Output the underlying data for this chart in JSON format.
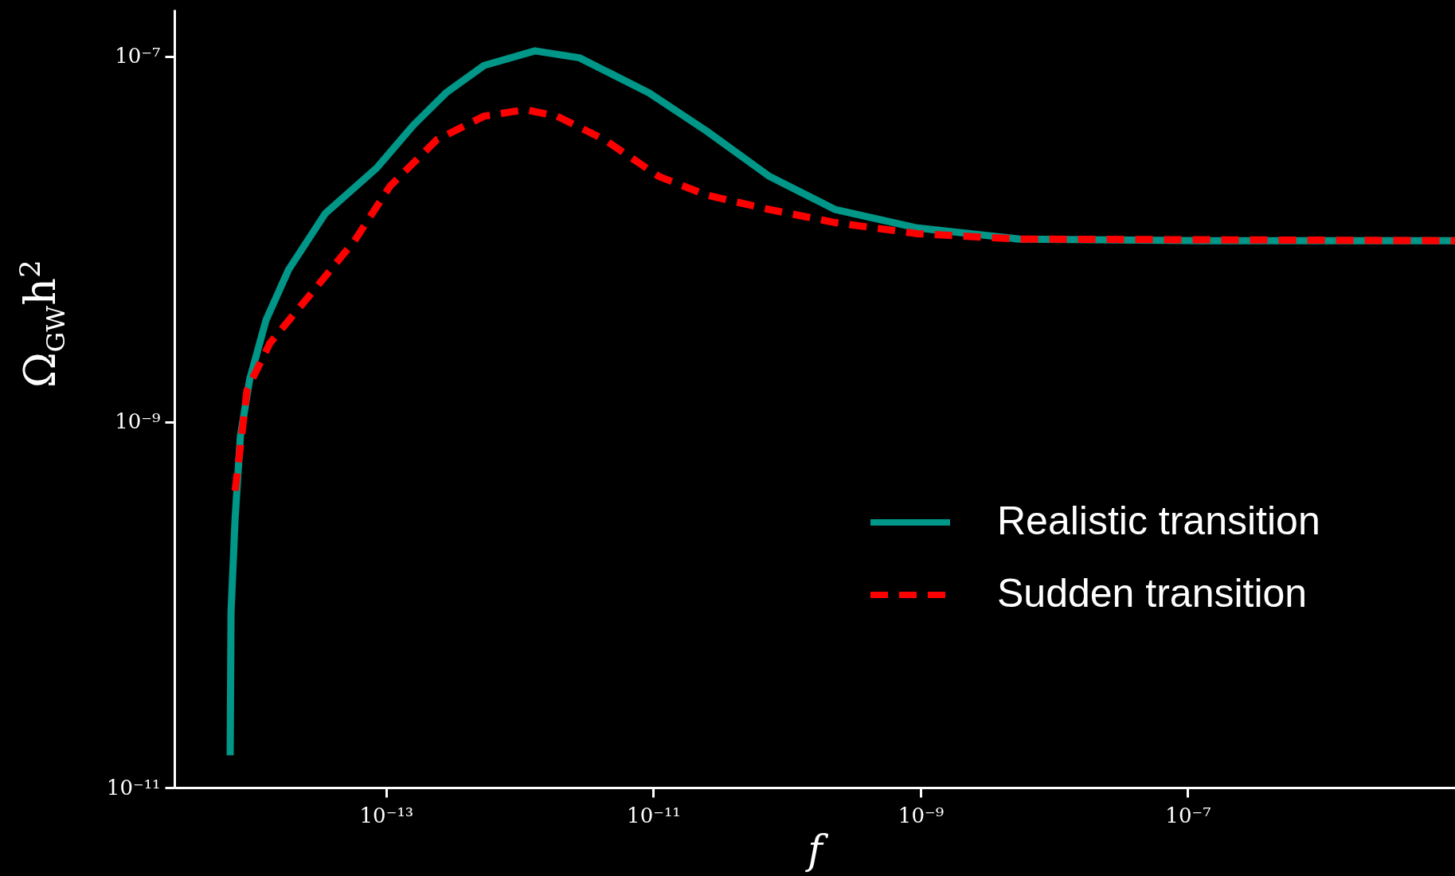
{
  "chart_data": {
    "type": "line",
    "xlabel": "f",
    "ylabel": "Ω$_{GW}$h$^{2}$",
    "log": "xy",
    "grid": false,
    "legend": "right",
    "xlim": [
      2.6e-15,
      1e-05
    ],
    "ylim": [
      1e-11,
      1.8e-07
    ],
    "xticks": [
      {
        "value": 1e-13,
        "label": "10⁻¹³"
      },
      {
        "value": 1e-11,
        "label": "10⁻¹¹"
      },
      {
        "value": 1e-09,
        "label": "10⁻⁹"
      },
      {
        "value": 1e-07,
        "label": "10⁻⁷"
      }
    ],
    "yticks": [
      {
        "value": 1e-11,
        "label": "10⁻¹¹"
      },
      {
        "value": 1e-09,
        "label": "10⁻⁹"
      },
      {
        "value": 1e-07,
        "label": "10⁻⁷"
      }
    ],
    "series": [
      {
        "name": "Realistic transition",
        "color": "#009688",
        "line_style": "solid",
        "x": [
          6.8e-15,
          6.9e-15,
          7.4e-15,
          8.1e-15,
          9.5e-15,
          1.26e-14,
          1.86e-14,
          3.5e-14,
          8.5e-14,
          1.6e-13,
          2.8e-13,
          5.4e-13,
          1.3e-12,
          2.8e-12,
          9.3e-12,
          2.5e-11,
          7.4e-11,
          2.3e-10,
          9.5e-10,
          5.5e-09,
          1.35e-07,
          1e-05
        ],
        "values": [
          1.5e-11,
          9.1e-11,
          2.95e-10,
          8.3e-10,
          1.7e-09,
          3.6e-09,
          6.8e-09,
          1.38e-08,
          2.45e-08,
          4.2e-08,
          6.3e-08,
          8.9e-08,
          1.07e-07,
          9.8e-08,
          6.3e-08,
          3.9e-08,
          2.2e-08,
          1.45e-08,
          1.15e-08,
          1e-08,
          9.8e-09,
          9.8e-09
        ]
      },
      {
        "name": "Sudden transition",
        "color": "#ff0000",
        "line_style": "dashed",
        "x": [
          7.4e-15,
          9.1e-15,
          1.35e-14,
          2.6e-14,
          5.8e-14,
          1.07e-13,
          2.4e-13,
          5.4e-13,
          1.1e-12,
          1.9e-12,
          4.3e-12,
          1.1e-11,
          2.5e-11,
          7.4e-11,
          2.3e-10,
          9.5e-10,
          5.5e-09,
          1e-05
        ],
        "values": [
          4.2e-10,
          1.5e-09,
          2.7e-09,
          4.8e-09,
          9.8e-09,
          1.95e-08,
          3.5e-08,
          4.7e-08,
          5.1e-08,
          4.7e-08,
          3.5e-08,
          2.2e-08,
          1.74e-08,
          1.45e-08,
          1.23e-08,
          1.07e-08,
          1e-08,
          9.8e-09
        ]
      }
    ]
  }
}
